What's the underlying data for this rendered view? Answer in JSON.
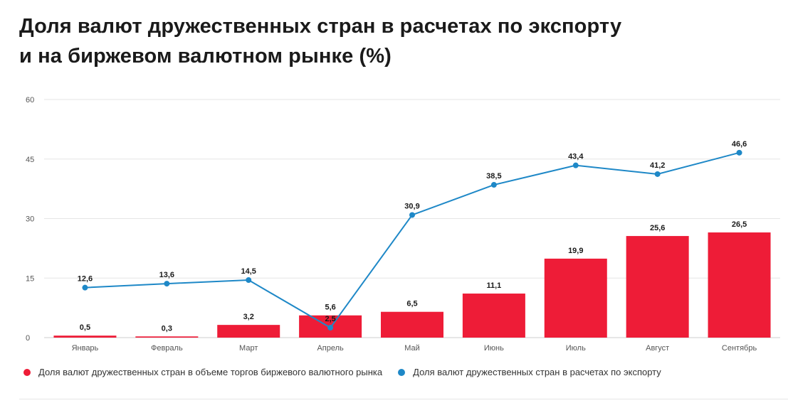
{
  "title": {
    "line1": "Доля валют дружественных стран в расчетах по экспорту",
    "line2": "и на биржевом валютном рынке (%)"
  },
  "colors": {
    "bar": "#ee1c37",
    "line": "#1e88c7",
    "grid": "#e6e6e6",
    "axis": "#cccccc",
    "tick_text": "#555555",
    "label_text": "#1a1a1a"
  },
  "legend": [
    {
      "label": "Доля валют дружественных стран в объеме торгов биржевого валютного рынка",
      "color": "#ee1c37"
    },
    {
      "label": "Доля валют дружественных стран в расчетах по экспорту",
      "color": "#1e88c7"
    }
  ],
  "chart_data": {
    "type": "bar+line",
    "categories": [
      "Январь",
      "Февраль",
      "Март",
      "Апрель",
      "Май",
      "Июнь",
      "Июль",
      "Август",
      "Сентябрь"
    ],
    "series": [
      {
        "name": "Доля валют дружественных стран в объеме торгов биржевого валютного рынка",
        "kind": "bar",
        "values": [
          0.5,
          0.3,
          3.2,
          5.6,
          6.5,
          11.1,
          19.9,
          25.6,
          26.5
        ],
        "labels": [
          "0,5",
          "0,3",
          "3,2",
          "5,6",
          "6,5",
          "11,1",
          "19,9",
          "25,6",
          "26,5"
        ]
      },
      {
        "name": "Доля валют дружественных стран в расчетах по экспорту",
        "kind": "line",
        "values": [
          12.6,
          13.6,
          14.5,
          2.5,
          30.9,
          38.5,
          43.4,
          41.2,
          46.6
        ],
        "labels": [
          "12,6",
          "13,6",
          "14,5",
          "2,5",
          "30,9",
          "38,5",
          "43,4",
          "41,2",
          "46,6"
        ]
      }
    ],
    "yticks": [
      0,
      15,
      30,
      45,
      60
    ],
    "ylim": [
      0,
      60
    ],
    "grid": true,
    "legend_position": "bottom-left"
  }
}
